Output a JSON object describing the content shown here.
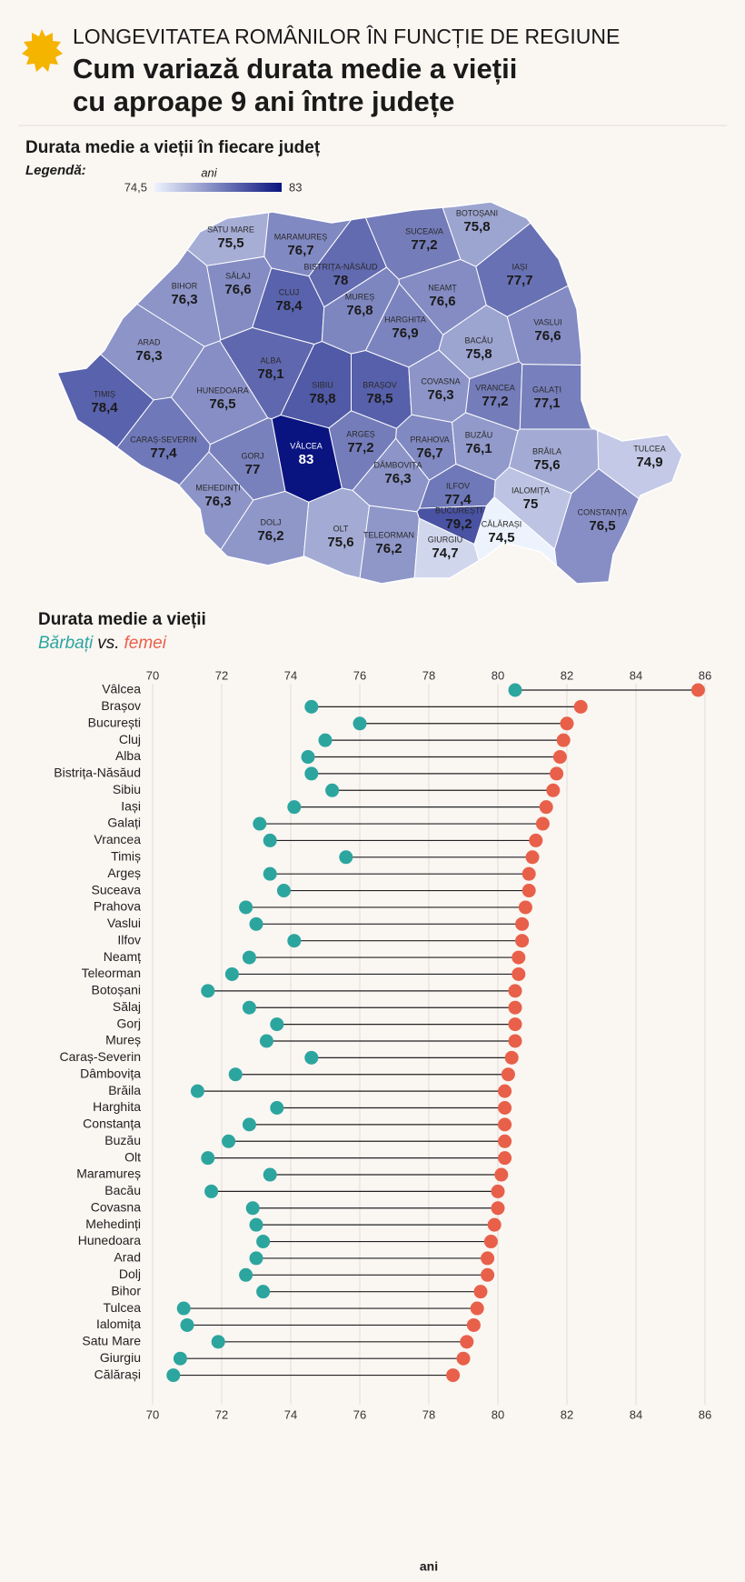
{
  "header": {
    "kicker": "LONGEVITATEA ROMÂNILOR ÎN FUNCȚIE DE REGIUNE",
    "title_lines": [
      "Cum variază durata medie a vieții",
      "cu aproape 9 ani între județe"
    ]
  },
  "chart_data": [
    {
      "type": "choropleth",
      "title": "Durata medie a vieții în fiecare județ",
      "legend_title": "Legendă:",
      "legend_unit": "ani",
      "colorbar_lim": [
        74.5,
        83
      ],
      "colorbar_ticks": [
        {
          "value": 74.5,
          "label": "74,5"
        },
        83
      ],
      "colors": [
        "#edf3fd",
        "#0a1480"
      ],
      "categories": [
        "SATU MARE",
        "MARAMUREȘ",
        "BOTOȘANI",
        "SUCEAVA",
        "BIHOR",
        "SĂLAJ",
        "BISTRIȚA-NĂSĂUD",
        "CLUJ",
        "IAȘI",
        "NEAMȚ",
        "MUREȘ",
        "HARGHITA",
        "VASLUI",
        "BACĂU",
        "ARAD",
        "ALBA",
        "TIMIȘ",
        "HUNEDOARA",
        "SIBIU",
        "BRAȘOV",
        "COVASNA",
        "VRANCEA",
        "GALAȚI",
        "CARAȘ-SEVERIN",
        "GORJ",
        "VÂLCEA",
        "ARGEȘ",
        "PRAHOVA",
        "BUZĂU",
        "BRĂILA",
        "TULCEA",
        "MEHEDINȚI",
        "DÂMBOVIȚA",
        "ILFOV",
        "IALOMIȚA",
        "BUCUREȘTI",
        "CONSTANȚA",
        "DOLJ",
        "OLT",
        "TELEORMAN",
        "GIURGIU",
        "CĂLĂRAȘI"
      ],
      "values": [
        75.5,
        76.7,
        75.8,
        77.2,
        76.3,
        76.6,
        78,
        78.4,
        77.7,
        76.6,
        76.8,
        76.9,
        76.6,
        75.8,
        76.3,
        78.1,
        78.4,
        76.5,
        78.8,
        78.5,
        76.3,
        77.2,
        77.1,
        77.4,
        77,
        83,
        77.2,
        76.7,
        76.1,
        75.6,
        74.9,
        76.3,
        76.3,
        77.4,
        75,
        79.2,
        76.5,
        76.2,
        75.6,
        76.2,
        74.7,
        74.5
      ],
      "value_labels": [
        "75,5",
        "76,7",
        "75,8",
        "77,2",
        "76,3",
        "76,6",
        "78",
        "78,4",
        "77,7",
        "76,6",
        "76,8",
        "76,9",
        "76,6",
        "75,8",
        "76,3",
        "78,1",
        "78,4",
        "76,5",
        "78,8",
        "78,5",
        "76,3",
        "77,2",
        "77,1",
        "77,4",
        "77",
        "83",
        "77,2",
        "76,7",
        "76,1",
        "75,6",
        "74,9",
        "76,3",
        "76,3",
        "77,4",
        "75",
        "79,2",
        "76,5",
        "76,2",
        "75,6",
        "76,2",
        "74,7",
        "74,5"
      ]
    },
    {
      "type": "dumbbell",
      "title": "Durata medie a vieții",
      "subtitle_joiner": "vs.",
      "xlabel": "ani",
      "xlim": [
        70,
        86
      ],
      "xticks": [
        70,
        72,
        74,
        76,
        78,
        80,
        82,
        84,
        86
      ],
      "grid": true,
      "categories": [
        "Vâlcea",
        "Brașov",
        "București",
        "Cluj",
        "Alba",
        "Bistrița-Năsăud",
        "Sibiu",
        "Iași",
        "Galați",
        "Vrancea",
        "Timiș",
        "Argeș",
        "Suceava",
        "Prahova",
        "Vaslui",
        "Ilfov",
        "Neamț",
        "Teleorman",
        "Botoșani",
        "Sălaj",
        "Gorj",
        "Mureș",
        "Caraș-Severin",
        "Dâmbovița",
        "Brăila",
        "Harghita",
        "Constanța",
        "Buzău",
        "Olt",
        "Maramureș",
        "Bacău",
        "Covasna",
        "Mehedinți",
        "Hunedoara",
        "Arad",
        "Dolj",
        "Bihor",
        "Tulcea",
        "Ialomița",
        "Satu Mare",
        "Giurgiu",
        "Călărași"
      ],
      "series": [
        {
          "name": "Bărbați",
          "color": "#2ca59f",
          "values": [
            80.5,
            74.6,
            76.0,
            75.0,
            74.5,
            74.6,
            75.2,
            74.1,
            73.1,
            73.4,
            75.6,
            73.4,
            73.8,
            72.7,
            73.0,
            74.1,
            72.8,
            72.3,
            71.6,
            72.8,
            73.6,
            73.3,
            74.6,
            72.4,
            71.3,
            73.6,
            72.8,
            72.2,
            71.6,
            73.4,
            71.7,
            72.9,
            73.0,
            73.2,
            73.0,
            72.7,
            73.2,
            70.9,
            71.0,
            71.9,
            70.8,
            70.6
          ]
        },
        {
          "name": "femei",
          "color": "#e8604a",
          "values": [
            85.8,
            82.4,
            82.0,
            81.9,
            81.8,
            81.7,
            81.6,
            81.4,
            81.3,
            81.1,
            81.0,
            80.9,
            80.9,
            80.8,
            80.7,
            80.7,
            80.6,
            80.6,
            80.5,
            80.5,
            80.5,
            80.5,
            80.4,
            80.3,
            80.2,
            80.2,
            80.2,
            80.2,
            80.2,
            80.1,
            80.0,
            80.0,
            79.9,
            79.8,
            79.7,
            79.7,
            79.5,
            79.4,
            79.3,
            79.1,
            79.0,
            78.7
          ]
        }
      ]
    }
  ]
}
